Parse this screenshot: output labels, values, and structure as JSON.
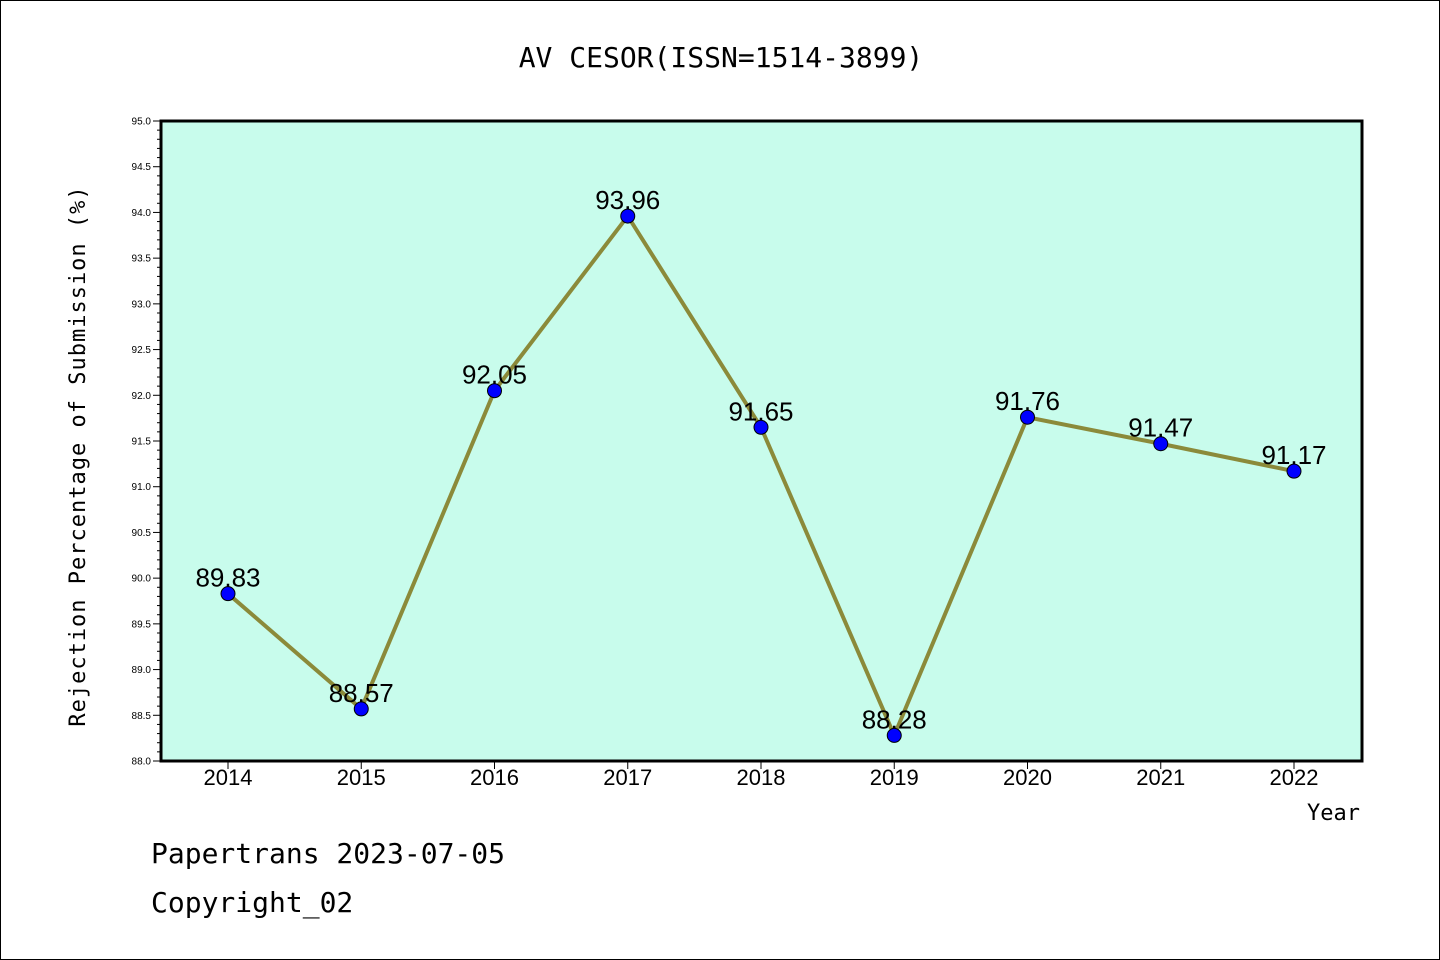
{
  "chart_data": {
    "type": "line",
    "title": "AV CESOR(ISSN=1514-3899)",
    "xlabel": "Year",
    "ylabel": "Rejection Percentage of Submission (%)",
    "categories": [
      "2014",
      "2015",
      "2016",
      "2017",
      "2018",
      "2019",
      "2020",
      "2021",
      "2022"
    ],
    "series": [
      {
        "values": [
          89.83,
          88.57,
          92.05,
          93.96,
          91.65,
          88.28,
          91.76,
          91.47,
          91.17
        ],
        "data_labels": [
          "89.83",
          "88.57",
          "92.05",
          "93.96",
          "91.65",
          "88.28",
          "91.76",
          "91.47",
          "91.17"
        ]
      }
    ],
    "ylim": [
      88.0,
      95.0
    ],
    "yticks": [
      "88.0",
      "88.5",
      "89.0",
      "89.5",
      "90.0",
      "90.5",
      "91.0",
      "91.5",
      "92.0",
      "92.5",
      "93.0",
      "93.5",
      "94.0",
      "94.5",
      "95.0"
    ],
    "grid": false,
    "colors": {
      "plot_background": "#c8fcec",
      "line": "#8b8a3a",
      "marker": "#0000ff",
      "frame": "#000000"
    }
  },
  "footer": {
    "line1": "Papertrans 2023-07-05",
    "line2": "Copyright_02"
  }
}
